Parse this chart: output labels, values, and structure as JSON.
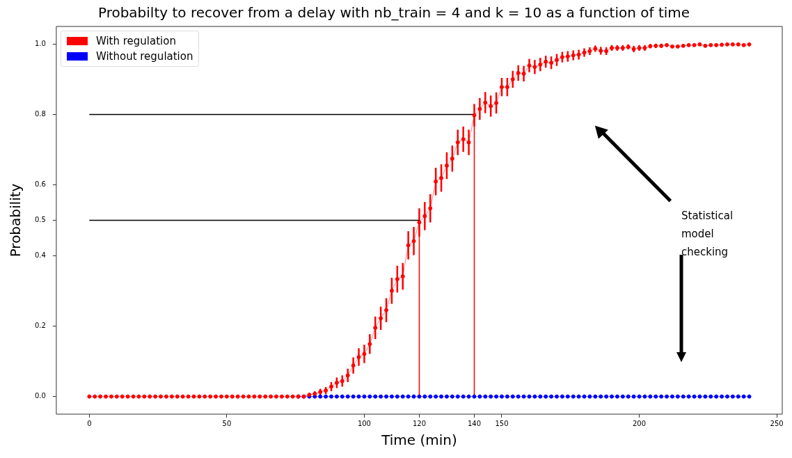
{
  "chart_data": {
    "type": "line",
    "title": "Probabilty to recover from a delay with nb_train = 4 and k = 10 as a function of time",
    "xlabel": "Time (min)",
    "ylabel": "Probability",
    "marker": "circle",
    "legend": "top left",
    "xlim": [
      -12,
      252
    ],
    "ylim": [
      -0.05,
      1.05
    ],
    "xticks": [
      0,
      50,
      100,
      120,
      140,
      150,
      200,
      250
    ],
    "yticks": [
      {
        "value": 0,
        "label": "0.0"
      },
      {
        "value": 0.2,
        "label": "0.2"
      },
      {
        "value": 0.4,
        "label": "0.4"
      },
      0.5,
      {
        "value": 0.6,
        "label": "0.6"
      },
      {
        "value": 0.8,
        "label": "0.8"
      },
      {
        "value": 1,
        "label": "1.0"
      }
    ],
    "annotations": [
      "Statistical model checking"
    ],
    "x": [
      0,
      2,
      4,
      6,
      8,
      10,
      12,
      14,
      16,
      18,
      20,
      22,
      24,
      26,
      28,
      30,
      32,
      34,
      36,
      38,
      40,
      42,
      44,
      46,
      48,
      50,
      52,
      54,
      56,
      58,
      60,
      62,
      64,
      66,
      68,
      70,
      72,
      74,
      76,
      78,
      80,
      82,
      84,
      86,
      88,
      90,
      92,
      94,
      96,
      98,
      100,
      102,
      104,
      106,
      108,
      110,
      112,
      114,
      116,
      118,
      120,
      122,
      124,
      126,
      128,
      130,
      132,
      134,
      136,
      138,
      140,
      142,
      144,
      146,
      148,
      150,
      152,
      154,
      156,
      158,
      160,
      162,
      164,
      166,
      168,
      170,
      172,
      174,
      176,
      178,
      180,
      182,
      184,
      186,
      188,
      190,
      192,
      194,
      196,
      198,
      200,
      202,
      204,
      206,
      208,
      210,
      212,
      214,
      216,
      218,
      220,
      222,
      224,
      226,
      228,
      230,
      232,
      234,
      236,
      238,
      240
    ],
    "series": [
      {
        "name": "With regulation",
        "color": "#ff0000",
        "values": [
          0,
          0,
          0,
          0,
          0,
          0,
          0,
          0,
          0,
          0,
          0,
          0,
          0,
          0,
          0,
          0,
          0,
          0,
          0,
          0,
          0,
          0,
          0,
          0,
          0,
          0,
          0,
          0,
          0,
          0,
          0,
          0,
          0,
          0,
          0,
          0,
          0,
          0,
          0,
          0,
          0.005,
          0.008,
          0.013,
          0.017,
          0.028,
          0.039,
          0.044,
          0.06,
          0.088,
          0.112,
          0.121,
          0.149,
          0.195,
          0.222,
          0.245,
          0.3,
          0.333,
          0.341,
          0.429,
          0.441,
          0.494,
          0.512,
          0.534,
          0.61,
          0.62,
          0.655,
          0.675,
          0.721,
          0.73,
          0.721,
          0.798,
          0.816,
          0.834,
          0.824,
          0.833,
          0.878,
          0.878,
          0.9,
          0.918,
          0.916,
          0.939,
          0.935,
          0.942,
          0.95,
          0.947,
          0.955,
          0.963,
          0.965,
          0.968,
          0.97,
          0.976,
          0.98,
          0.987,
          0.981,
          0.98,
          0.989,
          0.989,
          0.989,
          0.992,
          0.986,
          0.989,
          0.989,
          0.994,
          0.995,
          0.995,
          0.997,
          0.993,
          0.993,
          0.995,
          0.997,
          0.997,
          0.999,
          0.995,
          0.997,
          0.997,
          0.998,
          0.999,
          0.999,
          0.999,
          0.997,
          0.999
        ],
        "errors": [
          null,
          null,
          null,
          null,
          null,
          null,
          null,
          null,
          null,
          null,
          null,
          null,
          null,
          null,
          null,
          null,
          null,
          null,
          null,
          null,
          null,
          null,
          null,
          null,
          null,
          null,
          null,
          null,
          null,
          null,
          null,
          null,
          null,
          null,
          null,
          null,
          null,
          null,
          null,
          null,
          0.005,
          0.007,
          0.009,
          0.01,
          0.013,
          0.015,
          0.016,
          0.019,
          0.023,
          0.025,
          0.026,
          0.028,
          0.032,
          0.033,
          0.034,
          0.037,
          0.038,
          0.038,
          0.04,
          0.04,
          0.04,
          0.04,
          0.04,
          0.039,
          0.039,
          0.038,
          0.037,
          0.036,
          0.036,
          0.036,
          0.032,
          0.031,
          0.03,
          0.03,
          0.03,
          0.026,
          0.026,
          0.024,
          0.022,
          0.022,
          0.019,
          0.02,
          0.019,
          0.017,
          0.018,
          0.017,
          0.015,
          0.015,
          0.014,
          0.014,
          0.012,
          0.011,
          0.009,
          0.011,
          0.011,
          0.008,
          0.008,
          0.008,
          0.007,
          0.009,
          0.008,
          0.008,
          0.006,
          0.006,
          0.006,
          null,
          null,
          null,
          null,
          null,
          null,
          null,
          null,
          null,
          null,
          null,
          null,
          null,
          null,
          null,
          null
        ]
      },
      {
        "name": "Without regulation",
        "color": "#0000ff",
        "values": [
          null,
          null,
          null,
          null,
          null,
          null,
          null,
          null,
          null,
          null,
          null,
          null,
          null,
          null,
          null,
          null,
          null,
          null,
          null,
          null,
          null,
          null,
          null,
          null,
          null,
          null,
          null,
          null,
          null,
          null,
          null,
          null,
          null,
          null,
          null,
          null,
          null,
          null,
          0,
          0,
          0,
          0,
          0,
          0,
          0,
          0,
          0,
          0,
          0,
          0,
          0,
          0,
          0,
          0,
          0,
          0,
          0,
          0,
          0,
          0,
          0,
          0,
          0,
          0,
          0,
          0,
          0,
          0,
          0,
          0,
          0,
          0,
          0,
          0,
          0,
          0,
          0,
          0,
          0,
          0,
          0,
          0,
          0,
          0,
          0,
          0,
          0,
          0,
          0,
          0,
          0,
          0,
          0,
          0,
          0,
          0,
          0,
          0,
          0,
          0,
          0,
          0,
          0,
          0,
          0,
          0,
          0,
          0,
          0,
          0,
          0,
          0,
          0,
          0,
          0,
          0,
          0,
          0,
          0,
          0,
          0
        ]
      },
      {
        "type": "line",
        "marker": "none",
        "color": "#000000",
        "x": [
          0,
          120
        ],
        "values": [
          0.5,
          0.5
        ]
      },
      {
        "type": "line",
        "marker": "none",
        "color": "#000000",
        "x": [
          0,
          140
        ],
        "values": [
          0.8,
          0.8
        ]
      },
      {
        "type": "line",
        "marker": "none",
        "color": "#ff0000",
        "x": [
          120,
          120
        ],
        "values": [
          0,
          0.5
        ]
      },
      {
        "type": "line",
        "marker": "none",
        "color": "#ff0000",
        "x": [
          140,
          140
        ],
        "values": [
          0,
          0.8
        ]
      }
    ]
  }
}
